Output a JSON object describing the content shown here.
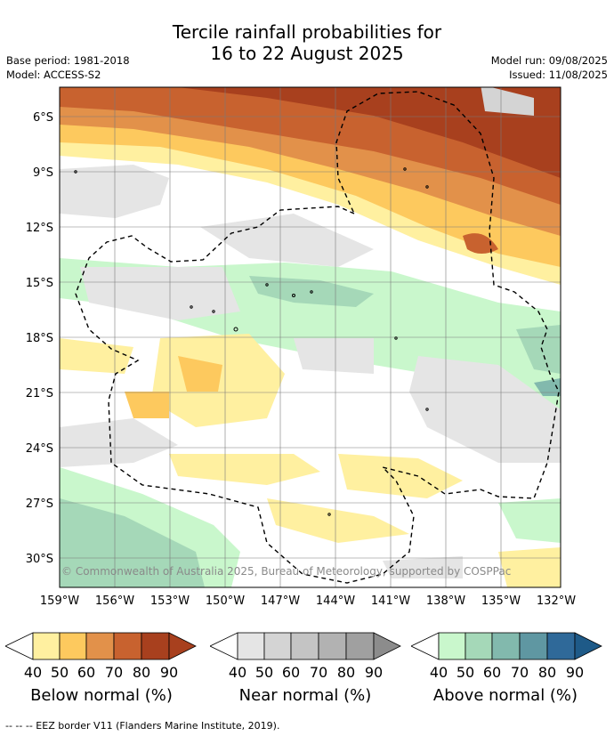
{
  "header": {
    "title_line1": "Tercile rainfall probabilities for",
    "title_line2": "16 to 22 August 2025",
    "base_period": "Base period: 1981-2018",
    "model": "Model: ACCESS-S2",
    "model_run": "Model run: 09/08/2025",
    "issued": "Issued: 11/08/2025"
  },
  "map": {
    "lat_labels": [
      "6°S",
      "9°S",
      "12°S",
      "15°S",
      "18°S",
      "21°S",
      "24°S",
      "27°S",
      "30°S"
    ],
    "lon_labels": [
      "159°W",
      "156°W",
      "153°W",
      "150°W",
      "147°W",
      "144°W",
      "141°W",
      "138°W",
      "135°W",
      "132°W"
    ],
    "copyright": "© Commonwealth of Australia 2025, Bureau of Meteorology, supported by COSPPac"
  },
  "legends": [
    {
      "label": "Below normal (%)",
      "ticks": [
        "40",
        "50",
        "60",
        "70",
        "80",
        "90"
      ],
      "colors": [
        "#fff0a0",
        "#fdc95e",
        "#e2914a",
        "#c8622f",
        "#a8401e",
        "#a8401e"
      ]
    },
    {
      "label": "Near normal (%)",
      "ticks": [
        "40",
        "50",
        "60",
        "70",
        "80",
        "90"
      ],
      "colors": [
        "#e5e5e5",
        "#d4d4d4",
        "#c4c4c4",
        "#b2b2b2",
        "#a0a0a0",
        "#8c8c8c"
      ]
    },
    {
      "label": "Above normal (%)",
      "ticks": [
        "40",
        "50",
        "60",
        "70",
        "80",
        "90"
      ],
      "colors": [
        "#c9f7cc",
        "#a5d8b8",
        "#82b9ad",
        "#5f97a2",
        "#2f6999",
        "#1e5a88"
      ]
    }
  ],
  "footer": {
    "eez_note": "--  --  -- EEZ border V11 (Flanders Marine Institute, 2019)."
  }
}
